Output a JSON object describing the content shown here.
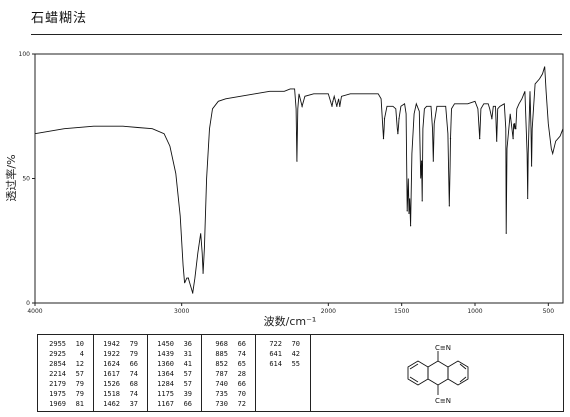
{
  "page": {
    "title": "石蜡糊法"
  },
  "chart_data": {
    "type": "line",
    "xlabel": "波数/cm⁻¹",
    "ylabel": "透过率/%",
    "xlim": [
      4000,
      400
    ],
    "ylim": [
      0,
      100
    ],
    "x_ticks": [
      4000,
      3000,
      2000,
      1500,
      1000,
      500
    ],
    "x_tick_labels": [
      "4000",
      "3000",
      "2000",
      "1500",
      "1000",
      "500"
    ],
    "y_ticks": [
      0,
      50,
      100
    ],
    "y_tick_labels": [
      "0",
      "50",
      "100"
    ],
    "grid": false,
    "baseline": [
      [
        4000,
        68
      ],
      [
        3800,
        70
      ],
      [
        3600,
        71
      ],
      [
        3400,
        71
      ],
      [
        3300,
        70.5
      ],
      [
        3200,
        70
      ],
      [
        3120,
        68
      ],
      [
        3080,
        63
      ],
      [
        3040,
        52
      ],
      [
        3010,
        35
      ],
      [
        2990,
        15
      ],
      [
        2980,
        8
      ],
      [
        2965,
        10
      ],
      [
        2955,
        10
      ],
      [
        2940,
        7
      ],
      [
        2925,
        4
      ],
      [
        2910,
        10
      ],
      [
        2890,
        20
      ],
      [
        2870,
        28
      ],
      [
        2860,
        20
      ],
      [
        2854,
        12
      ],
      [
        2845,
        22
      ],
      [
        2830,
        50
      ],
      [
        2810,
        70
      ],
      [
        2790,
        78
      ],
      [
        2750,
        81
      ],
      [
        2700,
        82
      ],
      [
        2600,
        83
      ],
      [
        2500,
        84
      ],
      [
        2400,
        85
      ],
      [
        2300,
        85
      ],
      [
        2260,
        86
      ],
      [
        2230,
        86
      ],
      [
        2220,
        78
      ],
      [
        2214,
        57
      ],
      [
        2208,
        78
      ],
      [
        2200,
        84
      ],
      [
        2179,
        79
      ],
      [
        2160,
        83
      ],
      [
        2100,
        84
      ],
      [
        2050,
        84
      ],
      [
        2000,
        84
      ],
      [
        1975,
        79
      ],
      [
        1969,
        81
      ],
      [
        1960,
        83
      ],
      [
        1942,
        79
      ],
      [
        1930,
        82
      ],
      [
        1922,
        79
      ],
      [
        1910,
        83
      ],
      [
        1850,
        84
      ],
      [
        1800,
        84
      ],
      [
        1750,
        84
      ],
      [
        1700,
        84
      ],
      [
        1660,
        84
      ],
      [
        1640,
        82
      ],
      [
        1624,
        66
      ],
      [
        1620,
        70
      ],
      [
        1617,
        74
      ],
      [
        1600,
        79
      ],
      [
        1560,
        79
      ],
      [
        1540,
        78
      ],
      [
        1530,
        70
      ],
      [
        1526,
        68
      ],
      [
        1520,
        72
      ],
      [
        1518,
        74
      ],
      [
        1505,
        79
      ],
      [
        1480,
        80
      ],
      [
        1470,
        76
      ],
      [
        1462,
        37
      ],
      [
        1455,
        50
      ],
      [
        1450,
        36
      ],
      [
        1445,
        42
      ],
      [
        1439,
        31
      ],
      [
        1430,
        60
      ],
      [
        1415,
        76
      ],
      [
        1400,
        80
      ],
      [
        1380,
        77
      ],
      [
        1370,
        50
      ],
      [
        1364,
        57
      ],
      [
        1360,
        41
      ],
      [
        1355,
        70
      ],
      [
        1345,
        78
      ],
      [
        1330,
        79
      ],
      [
        1300,
        79
      ],
      [
        1290,
        70
      ],
      [
        1284,
        57
      ],
      [
        1278,
        72
      ],
      [
        1260,
        79
      ],
      [
        1230,
        79
      ],
      [
        1200,
        79
      ],
      [
        1185,
        68
      ],
      [
        1175,
        39
      ],
      [
        1170,
        55
      ],
      [
        1167,
        66
      ],
      [
        1160,
        78
      ],
      [
        1140,
        80
      ],
      [
        1100,
        80
      ],
      [
        1050,
        80
      ],
      [
        1000,
        81
      ],
      [
        980,
        78
      ],
      [
        968,
        66
      ],
      [
        960,
        78
      ],
      [
        940,
        80
      ],
      [
        910,
        80
      ],
      [
        900,
        78
      ],
      [
        885,
        74
      ],
      [
        875,
        79
      ],
      [
        860,
        79
      ],
      [
        852,
        65
      ],
      [
        845,
        78
      ],
      [
        830,
        79
      ],
      [
        800,
        80
      ],
      [
        790,
        70
      ],
      [
        787,
        28
      ],
      [
        782,
        62
      ],
      [
        760,
        76
      ],
      [
        740,
        66
      ],
      [
        736,
        72
      ],
      [
        735,
        70
      ],
      [
        730,
        72
      ],
      [
        725,
        70
      ],
      [
        722,
        70
      ],
      [
        715,
        78
      ],
      [
        700,
        80
      ],
      [
        680,
        82
      ],
      [
        660,
        85
      ],
      [
        645,
        60
      ],
      [
        641,
        42
      ],
      [
        637,
        60
      ],
      [
        625,
        85
      ],
      [
        618,
        70
      ],
      [
        614,
        55
      ],
      [
        610,
        70
      ],
      [
        590,
        88
      ],
      [
        560,
        90
      ],
      [
        540,
        92
      ],
      [
        525,
        95
      ],
      [
        515,
        85
      ],
      [
        500,
        72
      ],
      [
        480,
        62
      ],
      [
        470,
        60
      ],
      [
        450,
        65
      ],
      [
        420,
        67
      ],
      [
        400,
        70
      ]
    ],
    "peaks": [
      {
        "wavenumber": 2955,
        "transmittance": 10
      },
      {
        "wavenumber": 2925,
        "transmittance": 4
      },
      {
        "wavenumber": 2854,
        "transmittance": 12
      },
      {
        "wavenumber": 2214,
        "transmittance": 57
      },
      {
        "wavenumber": 2179,
        "transmittance": 79
      },
      {
        "wavenumber": 1975,
        "transmittance": 79
      },
      {
        "wavenumber": 1969,
        "transmittance": 81
      },
      {
        "wavenumber": 1942,
        "transmittance": 79
      },
      {
        "wavenumber": 1922,
        "transmittance": 79
      },
      {
        "wavenumber": 1624,
        "transmittance": 66
      },
      {
        "wavenumber": 1617,
        "transmittance": 74
      },
      {
        "wavenumber": 1526,
        "transmittance": 68
      },
      {
        "wavenumber": 1518,
        "transmittance": 74
      },
      {
        "wavenumber": 1462,
        "transmittance": 37
      },
      {
        "wavenumber": 1450,
        "transmittance": 36
      },
      {
        "wavenumber": 1439,
        "transmittance": 31
      },
      {
        "wavenumber": 1360,
        "transmittance": 41
      },
      {
        "wavenumber": 1364,
        "transmittance": 57
      },
      {
        "wavenumber": 1284,
        "transmittance": 57
      },
      {
        "wavenumber": 1175,
        "transmittance": 39
      },
      {
        "wavenumber": 1167,
        "transmittance": 66
      },
      {
        "wavenumber": 968,
        "transmittance": 66
      },
      {
        "wavenumber": 885,
        "transmittance": 74
      },
      {
        "wavenumber": 852,
        "transmittance": 65
      },
      {
        "wavenumber": 787,
        "transmittance": 28
      },
      {
        "wavenumber": 740,
        "transmittance": 66
      },
      {
        "wavenumber": 735,
        "transmittance": 70
      },
      {
        "wavenumber": 730,
        "transmittance": 72
      },
      {
        "wavenumber": 722,
        "transmittance": 70
      },
      {
        "wavenumber": 641,
        "transmittance": 42
      },
      {
        "wavenumber": 614,
        "transmittance": 55
      }
    ]
  },
  "peak_table": {
    "columns": [
      [
        [
          "2955",
          "10"
        ],
        [
          "2925",
          "4"
        ],
        [
          "2854",
          "12"
        ],
        [
          "2214",
          "57"
        ],
        [
          "2179",
          "79"
        ],
        [
          "1975",
          "79"
        ],
        [
          "1969",
          "81"
        ]
      ],
      [
        [
          "1942",
          "79"
        ],
        [
          "1922",
          "79"
        ],
        [
          "1624",
          "66"
        ],
        [
          "1617",
          "74"
        ],
        [
          "1526",
          "68"
        ],
        [
          "1518",
          "74"
        ],
        [
          "1462",
          "37"
        ]
      ],
      [
        [
          "1450",
          "36"
        ],
        [
          "1439",
          "31"
        ],
        [
          "1360",
          "41"
        ],
        [
          "1364",
          "57"
        ],
        [
          "1284",
          "57"
        ],
        [
          "1175",
          "39"
        ],
        [
          "1167",
          "66"
        ]
      ],
      [
        [
          "968",
          "66"
        ],
        [
          "885",
          "74"
        ],
        [
          "852",
          "65"
        ],
        [
          "787",
          "28"
        ],
        [
          "740",
          "66"
        ],
        [
          "735",
          "70"
        ],
        [
          "730",
          "72"
        ]
      ],
      [
        [
          "722",
          "70"
        ],
        [
          "641",
          "42"
        ],
        [
          "614",
          "55"
        ]
      ]
    ]
  },
  "structure": {
    "top_label": "C≡N",
    "bottom_label": "C≡N"
  }
}
